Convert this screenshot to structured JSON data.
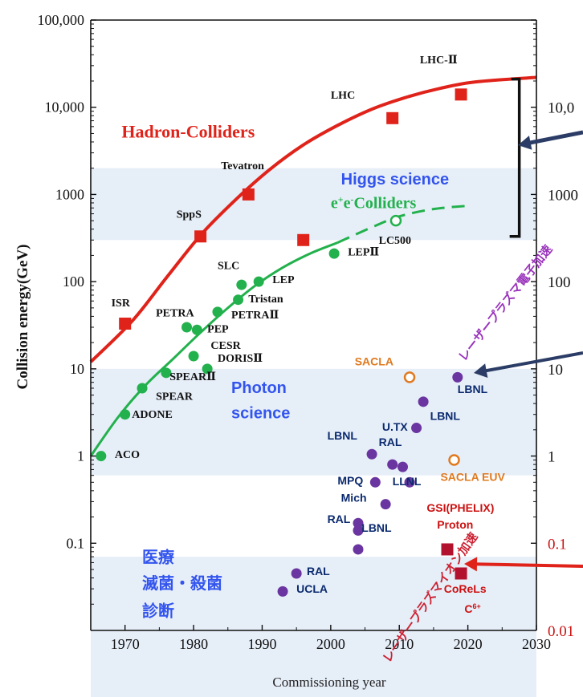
{
  "chart_data": {
    "type": "scatter",
    "xlabel": "Commissioning year",
    "ylabel": "Collision energy(GeV)",
    "xlim": [
      1965,
      2030
    ],
    "ylim": [
      0.01,
      100000
    ],
    "yscale": "log",
    "x_ticks": [
      1970,
      1980,
      1990,
      2000,
      2010,
      2020,
      2030
    ],
    "x_tick_labels": [
      "1970",
      "1980",
      "1990",
      "2000",
      "2010",
      "2020",
      "2030"
    ],
    "y_ticks": [
      0.1,
      1,
      10,
      100,
      1000,
      10000,
      100000
    ],
    "y_tick_labels": [
      "0.1",
      "1",
      "10",
      "100",
      "1000",
      "10,000",
      "100,000"
    ],
    "right_axis_labels": [
      {
        "y": 10000,
        "text": "10,0"
      },
      {
        "y": 1000,
        "text": "1000"
      },
      {
        "y": 100,
        "text": "100"
      },
      {
        "y": 10,
        "text": "10"
      },
      {
        "y": 1,
        "text": "1"
      },
      {
        "y": 0.1,
        "text": "0.1",
        "color": "#cc1111"
      },
      {
        "y": 0.01,
        "text": "0.01",
        "color": "#cc1111"
      }
    ],
    "bands": [
      {
        "name": "Higgs science",
        "ymin": 300,
        "ymax": 2000
      },
      {
        "name": "Photon science",
        "ymin": 0.6,
        "ymax": 10
      },
      {
        "name": "medical",
        "ymin": 0.01,
        "ymax": 0.07
      }
    ],
    "region_labels": [
      {
        "text": "Hadron-Colliders",
        "x": 1969.5,
        "y": 4500,
        "color": "#e0231a"
      },
      {
        "text": "Higgs science",
        "x": 2001.5,
        "y": 1300,
        "color": "#3355ee"
      },
      {
        "text": "Photon",
        "x": 1985.5,
        "y": 5.3,
        "color": "#3355ee"
      },
      {
        "text": "science",
        "x": 1985.5,
        "y": 2.7,
        "color": "#3355ee"
      },
      {
        "text": "医療",
        "x": 1972.5,
        "y": 0.06,
        "color": "#3355ee"
      },
      {
        "text": "滅菌・殺菌",
        "x": 1972.5,
        "y": 0.03,
        "color": "#3355ee"
      },
      {
        "text": "診断",
        "x": 1972.5,
        "y": 0.0145,
        "color": "#3355ee"
      }
    ],
    "ee_label": {
      "main": "e",
      "sup1": "+",
      "mid": "e",
      "sup2": "-",
      "tail": "Colliders",
      "x": 2000,
      "y": 700
    },
    "diag_labels": [
      {
        "text": "レーザープラズマ電子加速",
        "x": 2019.5,
        "y": 12,
        "angle": -52,
        "color": "#9933bb"
      },
      {
        "text": "レーザープラズマイオン加速",
        "x": 2008.5,
        "y": 0.0042,
        "angle": -55,
        "color": "#cc2233"
      }
    ],
    "hadron_curve": [
      [
        1965,
        12
      ],
      [
        1971,
        35
      ],
      [
        1976,
        110
      ],
      [
        1981,
        340
      ],
      [
        1986,
        850
      ],
      [
        1991,
        1900
      ],
      [
        1996,
        3700
      ],
      [
        2001,
        6200
      ],
      [
        2006,
        9500
      ],
      [
        2011,
        13000
      ],
      [
        2016,
        16500
      ],
      [
        2021,
        19500
      ],
      [
        2030,
        22000
      ]
    ],
    "ee_curve_solid": [
      [
        1965,
        1
      ],
      [
        1969,
        2.8
      ],
      [
        1973,
        6.5
      ],
      [
        1977,
        13
      ],
      [
        1981,
        26
      ],
      [
        1985,
        50
      ],
      [
        1989,
        90
      ],
      [
        1993,
        145
      ],
      [
        1997,
        210
      ],
      [
        2001,
        280
      ]
    ],
    "ee_curve_dashed": [
      [
        2001,
        280
      ],
      [
        2006,
        420
      ],
      [
        2010,
        560
      ],
      [
        2015,
        680
      ],
      [
        2020,
        740
      ]
    ],
    "series": [
      {
        "name": "Hadron-Colliders",
        "color": "#e0231a",
        "marker": "square",
        "points": [
          {
            "x": 1970,
            "y": 33,
            "label": "ISR",
            "lx": 1968,
            "ly": 52,
            "font": "serif"
          },
          {
            "x": 1981,
            "y": 330,
            "label": "SppS",
            "lx": 1977.5,
            "ly": 540,
            "font": "serif"
          },
          {
            "x": 1988,
            "y": 1000,
            "label": "Tevatron",
            "lx": 1984,
            "ly": 1950,
            "font": "serif"
          },
          {
            "x": 1996,
            "y": 300,
            "label": "",
            "lx": 0,
            "ly": 0,
            "font": "serif"
          },
          {
            "x": 2009,
            "y": 7500,
            "label": "LHC",
            "lx": 2000,
            "ly": 12500,
            "font": "serif"
          },
          {
            "x": 2019,
            "y": 14000,
            "label": "LHC-Ⅱ",
            "lx": 2013,
            "ly": 32000,
            "font": "serif"
          }
        ]
      },
      {
        "name": "e+e- Colliders",
        "color": "#22b14c",
        "marker": "circle",
        "points": [
          {
            "x": 1966.5,
            "y": 1,
            "label": "ACO",
            "lx": 1968.5,
            "ly": 0.95,
            "font": "serif"
          },
          {
            "x": 1970,
            "y": 3,
            "label": "ADONE",
            "lx": 1971,
            "ly": 2.75,
            "font": "serif"
          },
          {
            "x": 1972.5,
            "y": 6,
            "label": "SPEAR",
            "lx": 1974.5,
            "ly": 4.4,
            "font": "serif"
          },
          {
            "x": 1976,
            "y": 9,
            "label": "SPEARⅡ",
            "lx": 1976.5,
            "ly": 7.4,
            "font": "serif"
          },
          {
            "x": 1979,
            "y": 30,
            "label": "PETRA",
            "lx": 1974.5,
            "ly": 40,
            "font": "serif"
          },
          {
            "x": 1980.5,
            "y": 28,
            "label": "PEP",
            "lx": 1982,
            "ly": 26,
            "font": "serif"
          },
          {
            "x": 1983.5,
            "y": 45,
            "label": "PETRAⅡ",
            "lx": 1985.5,
            "ly": 38,
            "font": "serif"
          },
          {
            "x": 1980,
            "y": 14,
            "label": "CESR",
            "lx": 1982.5,
            "ly": 17,
            "font": "serif"
          },
          {
            "x": 1982,
            "y": 10,
            "label": "DORISⅡ",
            "lx": 1983.5,
            "ly": 12,
            "font": "serif"
          },
          {
            "x": 1987,
            "y": 92,
            "label": "SLC",
            "lx": 1983.5,
            "ly": 140,
            "font": "serif"
          },
          {
            "x": 1989.5,
            "y": 100,
            "label": "LEP",
            "lx": 1991.5,
            "ly": 96,
            "font": "serif"
          },
          {
            "x": 1986.5,
            "y": 62,
            "label": "Tristan",
            "lx": 1988,
            "ly": 58,
            "font": "serif"
          },
          {
            "x": 2000.5,
            "y": 210,
            "label": "LEPⅡ",
            "lx": 2002.5,
            "ly": 200,
            "font": "serif"
          }
        ]
      },
      {
        "name": "LC500",
        "color": "#22b14c",
        "marker": "open-circle",
        "points": [
          {
            "x": 2009.5,
            "y": 500,
            "label": "LC500",
            "lx": 2007,
            "ly": 270,
            "font": "serif"
          }
        ]
      },
      {
        "name": "Laser plasma electron",
        "color": "#6a35a0",
        "marker": "circle",
        "points": [
          {
            "x": 2006,
            "y": 1.05,
            "label": "LBNL",
            "lx": 1999.5,
            "ly": 1.55,
            "font": "sans",
            "lc": "#0b2a6e"
          },
          {
            "x": 2009,
            "y": 0.8,
            "label": "RAL",
            "lx": 2007,
            "ly": 1.3,
            "font": "sans",
            "lc": "#0b2a6e"
          },
          {
            "x": 2010.5,
            "y": 0.75,
            "label": "",
            "lx": 0,
            "ly": 0,
            "font": "sans"
          },
          {
            "x": 2012.5,
            "y": 2.1,
            "label": "U.TX",
            "lx": 2007.5,
            "ly": 1.95,
            "font": "sans",
            "lc": "#0b2a6e"
          },
          {
            "x": 2013.5,
            "y": 4.2,
            "label": "LBNL",
            "lx": 2014.5,
            "ly": 2.6,
            "font": "sans",
            "lc": "#0b2a6e"
          },
          {
            "x": 2018.5,
            "y": 8,
            "label": "LBNL",
            "lx": 2018.5,
            "ly": 5.3,
            "font": "sans",
            "lc": "#0b2a6e"
          },
          {
            "x": 2006.5,
            "y": 0.5,
            "label": "MPQ",
            "lx": 2001,
            "ly": 0.47,
            "font": "sans",
            "lc": "#0b2a6e"
          },
          {
            "x": 2011.5,
            "y": 0.5,
            "label": "LLNL",
            "lx": 2009,
            "ly": 0.46,
            "font": "sans",
            "lc": "#0b2a6e"
          },
          {
            "x": 2008,
            "y": 0.28,
            "label": "Mich",
            "lx": 2001.5,
            "ly": 0.3,
            "font": "sans",
            "lc": "#0b2a6e"
          },
          {
            "x": 2004,
            "y": 0.17,
            "label": "RAL",
            "lx": 1999.5,
            "ly": 0.17,
            "font": "sans",
            "lc": "#0b2a6e"
          },
          {
            "x": 2004,
            "y": 0.14,
            "label": "LBNL",
            "lx": 2004.5,
            "ly": 0.135,
            "font": "sans",
            "lc": "#0b2a6e"
          },
          {
            "x": 2004,
            "y": 0.085,
            "label": "",
            "lx": 0,
            "ly": 0,
            "font": "sans"
          },
          {
            "x": 1995,
            "y": 0.045,
            "label": "RAL",
            "lx": 1996.5,
            "ly": 0.043,
            "font": "sans",
            "lc": "#0b2a6e"
          },
          {
            "x": 1993,
            "y": 0.028,
            "label": "UCLA",
            "lx": 1995,
            "ly": 0.027,
            "font": "sans",
            "lc": "#0b2a6e"
          }
        ]
      },
      {
        "name": "SACLA",
        "color": "#e07a1f",
        "marker": "open-circle",
        "points": [
          {
            "x": 2011.5,
            "y": 8,
            "label": "SACLA",
            "lx": 2003.5,
            "ly": 11,
            "font": "sans",
            "lc": "#e07a1f"
          },
          {
            "x": 2018,
            "y": 0.9,
            "label": "SACLA EUV",
            "lx": 2016,
            "ly": 0.52,
            "font": "sans",
            "lc": "#e07a1f"
          }
        ]
      },
      {
        "name": "Laser plasma ion",
        "color": "#b3122e",
        "marker": "square",
        "points": [
          {
            "x": 2017,
            "y": 0.085,
            "label": "GSI(PHELIX)",
            "lx": 2014,
            "ly": 0.23,
            "font": "sans",
            "lc": "#cc1111"
          },
          {
            "x": 2019,
            "y": 0.045,
            "label": "CoReLs",
            "lx": 2016.5,
            "ly": 0.027,
            "font": "sans",
            "lc": "#cc1111"
          }
        ]
      }
    ],
    "extra_labels": [
      {
        "text": "Proton",
        "x": 2015.5,
        "y": 0.148,
        "color": "#cc1111",
        "font": "sans"
      },
      {
        "text": "C",
        "sup": "6+",
        "x": 2019.5,
        "y": 0.016,
        "color": "#cc1111",
        "font": "sans"
      }
    ]
  }
}
